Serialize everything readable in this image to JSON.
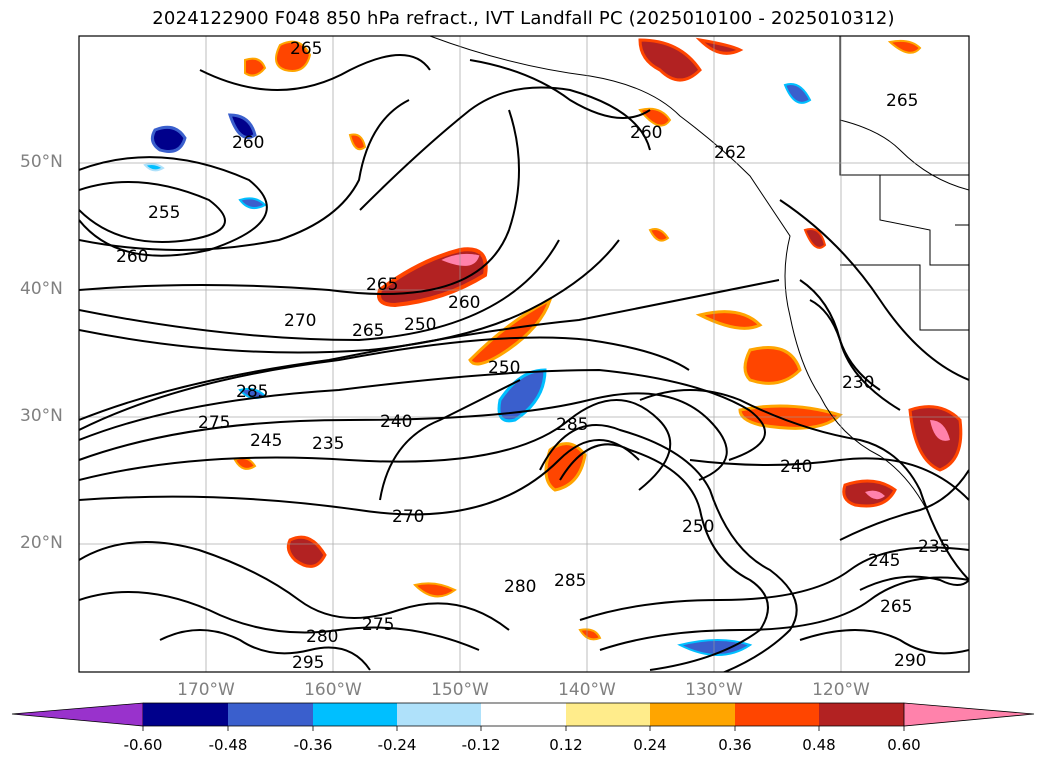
{
  "title": "2024122900 F048 850 hPa refract., IVT Landfall PC (2025010100 - 2025010312)",
  "axes": {
    "lat_labels": [
      "50°N",
      "40°N",
      "30°N",
      "20°N"
    ],
    "lon_labels": [
      "170°W",
      "160°W",
      "150°W",
      "140°W",
      "130°W",
      "120°W"
    ]
  },
  "contour_labels": [
    "265",
    "260",
    "255",
    "260",
    "265",
    "260",
    "270",
    "265",
    "250",
    "285",
    "275",
    "245",
    "235",
    "240",
    "250",
    "285",
    "240",
    "270",
    "250",
    "245",
    "235",
    "265",
    "280",
    "275",
    "280",
    "285",
    "290",
    "295",
    "230",
    "262",
    "260",
    "265"
  ],
  "colorbar": {
    "ticks": [
      "-0.60",
      "-0.48",
      "-0.36",
      "-0.24",
      "-0.12",
      "0.12",
      "0.24",
      "0.36",
      "0.48",
      "0.60"
    ],
    "colors": [
      "#9932cc",
      "#00008b",
      "#3a5fcd",
      "#00bfff",
      "#afe1fa",
      "#ffffff",
      "#ffec8b",
      "#ffa500",
      "#ff4500",
      "#b22222",
      "#ff82ab"
    ]
  }
}
